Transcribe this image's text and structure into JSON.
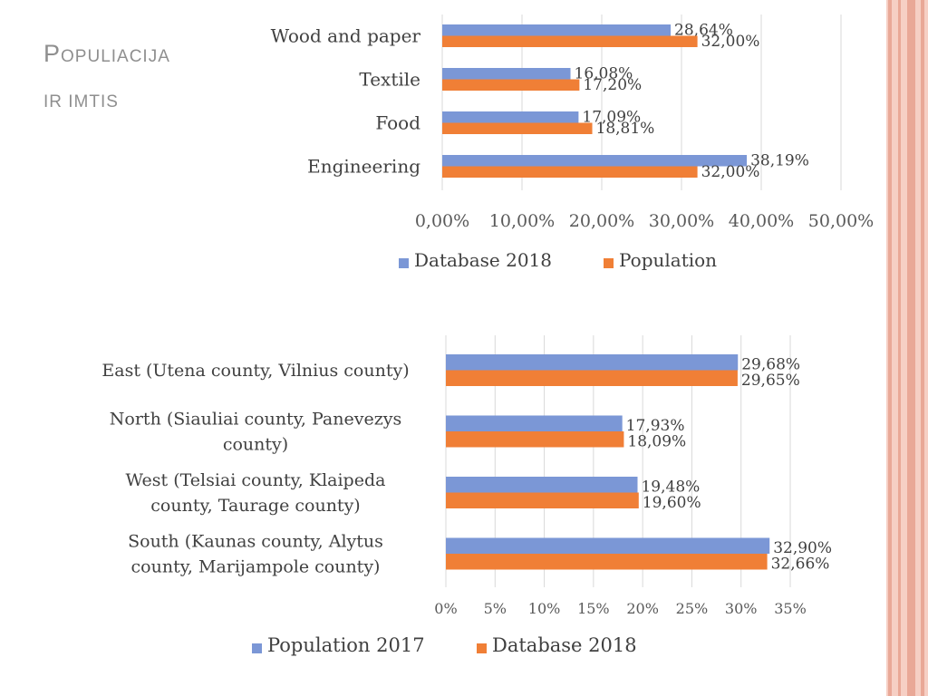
{
  "slide": {
    "title_first_letter": "P",
    "title_line1_rest": "OPULIACIJA",
    "title_line2": "IR IMTIS"
  },
  "colors": {
    "series_blue": "#7b97d6",
    "series_orange": "#f07f36",
    "stripe_dark": "#e9a897",
    "stripe_light": "#f6cfc4",
    "title_gray": "#8f8f8f"
  },
  "chart_data": [
    {
      "type": "bar",
      "orientation": "horizontal",
      "categories": [
        "Wood and paper",
        "Textile",
        "Food",
        "Engineering"
      ],
      "series": [
        {
          "name": "Database 2018",
          "color": "#7b97d6",
          "values": [
            28.64,
            16.08,
            17.09,
            38.19
          ],
          "labels": [
            "28,64%",
            "16,08%",
            "17,09%",
            "38,19%"
          ]
        },
        {
          "name": "Population",
          "color": "#f07f36",
          "values": [
            32.0,
            17.2,
            18.81,
            32.0
          ],
          "labels": [
            "32,00%",
            "17,20%",
            "18,81%",
            "32,00%"
          ]
        }
      ],
      "xlim": [
        0,
        50
      ],
      "xticks": [
        "0,00%",
        "10,00%",
        "20,00%",
        "30,00%",
        "40,00%",
        "50,00%"
      ],
      "grid": true,
      "legend_position": "bottom"
    },
    {
      "type": "bar",
      "orientation": "horizontal",
      "categories": [
        [
          "East (Utena county, Vilnius county)"
        ],
        [
          "North (Siauliai county, Panevezys",
          "county)"
        ],
        [
          "West (Telsiai county, Klaipeda",
          "county, Taurage county)"
        ],
        [
          "South (Kaunas county, Alytus",
          "county, Marijampole county)"
        ]
      ],
      "series": [
        {
          "name": "Population 2017",
          "color": "#7b97d6",
          "values": [
            29.68,
            17.93,
            19.48,
            32.9
          ],
          "labels": [
            "29,68%",
            "17,93%",
            "19,48%",
            "32,90%"
          ]
        },
        {
          "name": "Database 2018",
          "color": "#f07f36",
          "values": [
            29.65,
            18.09,
            19.6,
            32.66
          ],
          "labels": [
            "29,65%",
            "18,09%",
            "19,60%",
            "32,66%"
          ]
        }
      ],
      "xlim": [
        0,
        35
      ],
      "xticks": [
        "0%",
        "5%",
        "10%",
        "15%",
        "20%",
        "25%",
        "30%",
        "35%"
      ],
      "grid": true,
      "legend_position": "bottom"
    }
  ]
}
